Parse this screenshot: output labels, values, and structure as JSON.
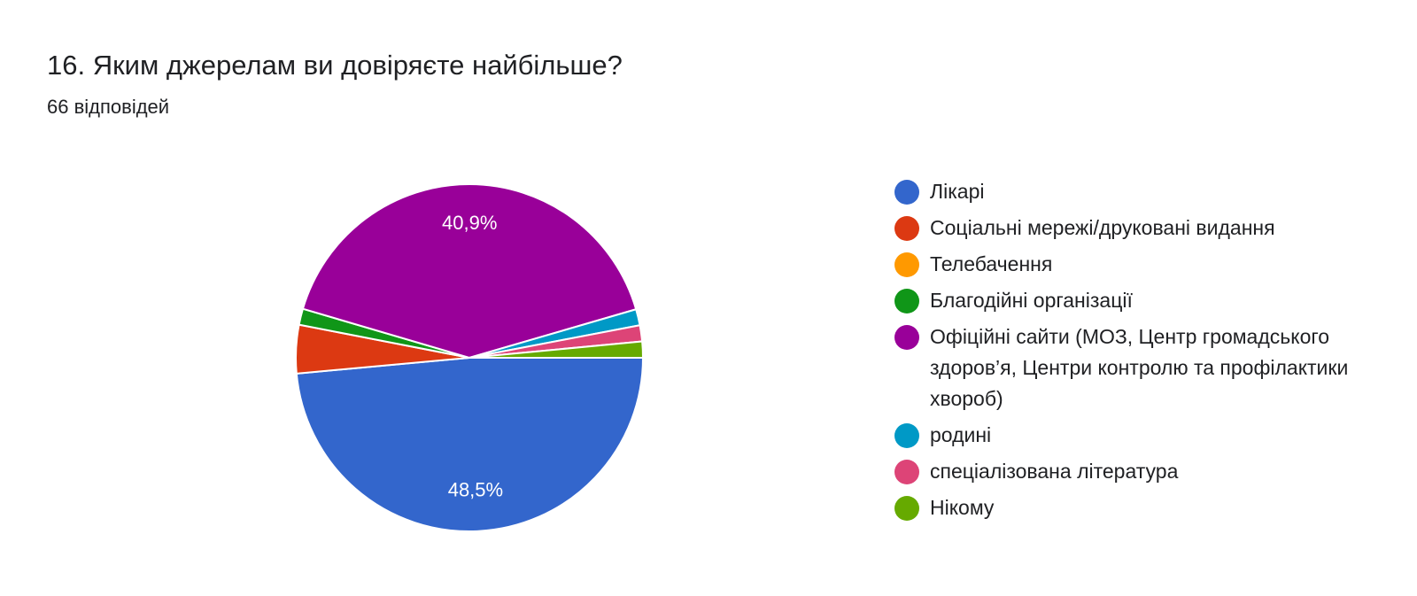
{
  "header": {
    "title": "16. Яким джерелам ви довіряєте найбільше?",
    "responses": "66 відповідей"
  },
  "chart_data": {
    "type": "pie",
    "total_responses": 66,
    "slices": [
      {
        "label": "Лікарі",
        "value": 48.5,
        "color": "#3366cc",
        "data_label": "48,5%"
      },
      {
        "label": "Соціальні мережі/друковані видання",
        "value": 4.5,
        "color": "#dc3912",
        "data_label": ""
      },
      {
        "label": "Телебачення",
        "value": 0,
        "color": "#ff9900",
        "data_label": ""
      },
      {
        "label": "Благодійні організації",
        "value": 1.5,
        "color": "#109618",
        "data_label": ""
      },
      {
        "label": "Офіційні сайти (МОЗ, Центр громадського здоров’я, Центри контролю та профілактики хвороб)",
        "value": 40.9,
        "color": "#990099",
        "data_label": "40,9%"
      },
      {
        "label": "родині",
        "value": 1.5,
        "color": "#0099c6",
        "data_label": ""
      },
      {
        "label": "спеціалізована література",
        "value": 1.5,
        "color": "#dd4477",
        "data_label": ""
      },
      {
        "label": "Нікому",
        "value": 1.5,
        "color": "#66aa00",
        "data_label": ""
      }
    ],
    "legend_position": "right"
  }
}
